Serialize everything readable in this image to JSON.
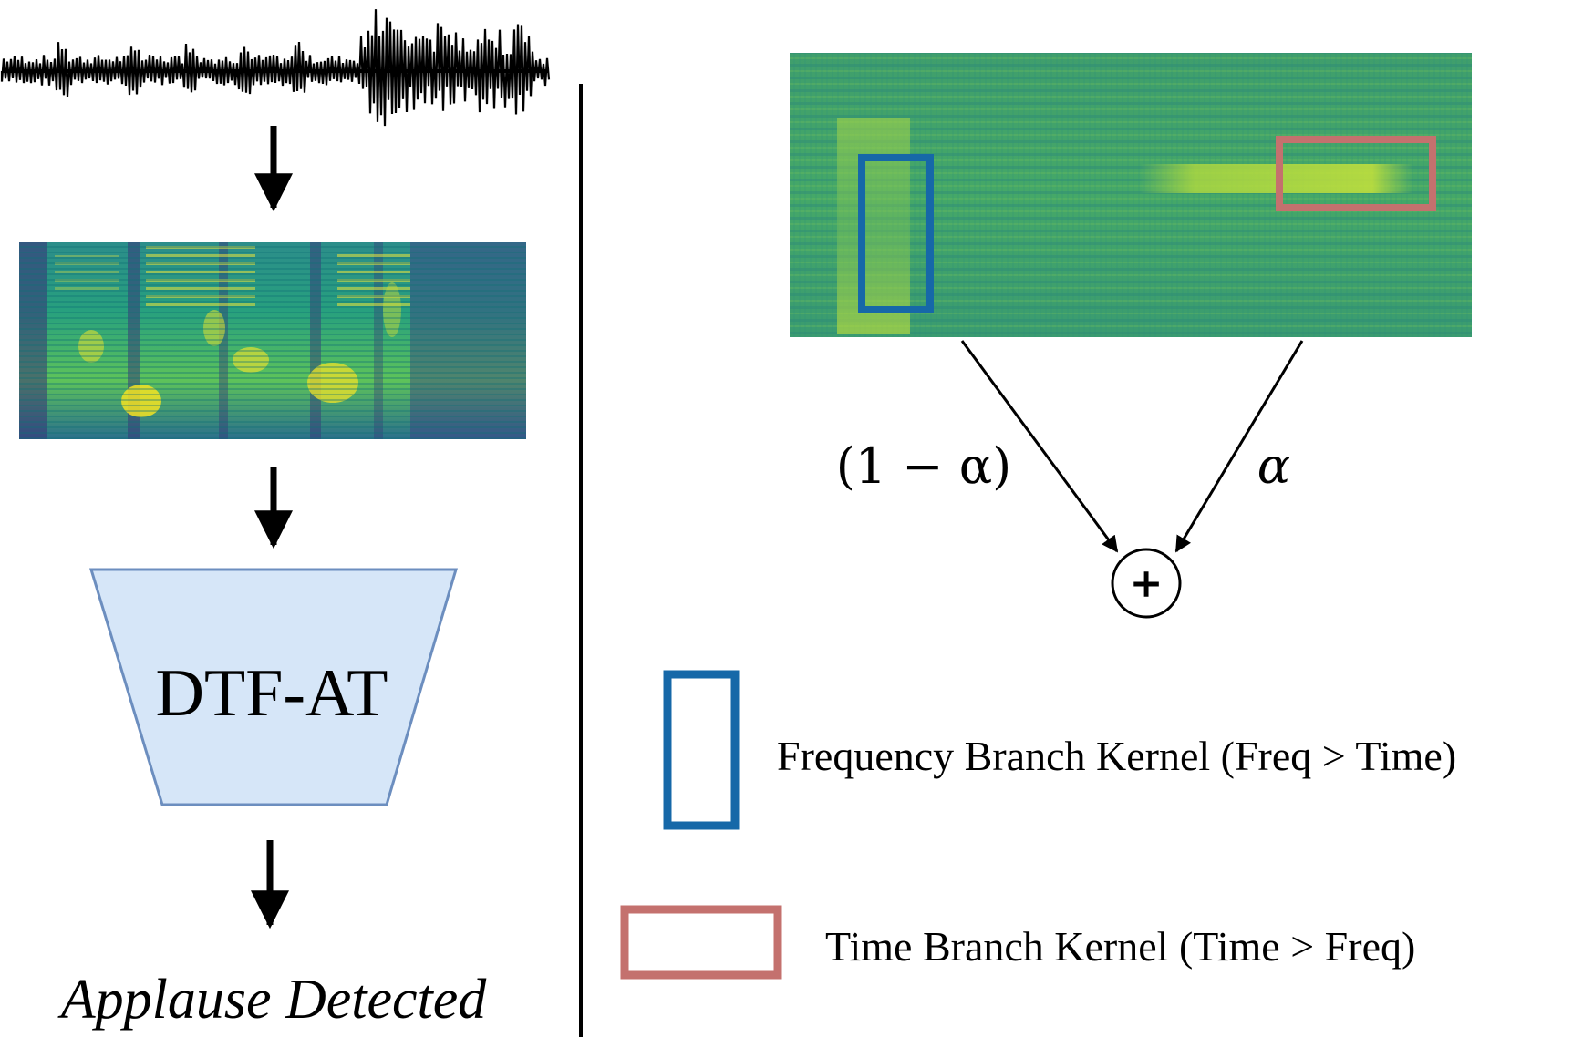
{
  "model": {
    "name": "DTF-AT"
  },
  "output": {
    "label": "Applause Detected"
  },
  "weights": {
    "left": "(1 − α)",
    "right": "α"
  },
  "sum_node": {
    "symbol": "+"
  },
  "legend": {
    "items": [
      {
        "label": "Frequency Branch Kernel (Freq > Time)",
        "color": "#1668a8"
      },
      {
        "label": "Time Branch Kernel (Time > Freq)",
        "color": "#c4716e"
      }
    ]
  },
  "colors": {
    "model_fill": "#d6e6f8",
    "model_stroke": "#6c8ebf",
    "spec_low": "#3a1e6e",
    "spec_mid": "#21938c",
    "spec_high": "#f4e61e",
    "spec_right_base": "#3aa16a"
  }
}
